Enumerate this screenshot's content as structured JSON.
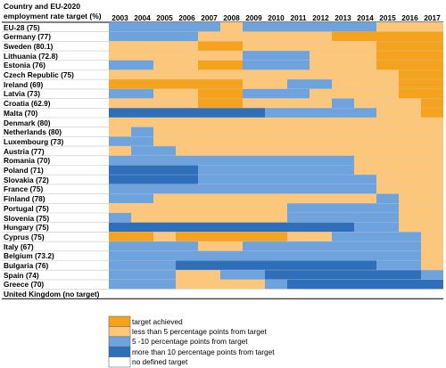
{
  "chart_data": {
    "type": "heatmap",
    "header_line1": "Country and EU-2020",
    "header_line2": "employment rate target (%)",
    "years": [
      "2003",
      "2004",
      "2005",
      "2006",
      "2007",
      "2008",
      "2009",
      "2010",
      "2011",
      "2012",
      "2013",
      "2014",
      "2015",
      "2016",
      "2017"
    ],
    "categories": {
      "A": {
        "label": "target achieved",
        "color": "#f5a31f"
      },
      "B": {
        "label": "less than 5 percentage points from target",
        "color": "#fcc77a"
      },
      "C": {
        "label": "5 -10 percentage points from target",
        "color": "#6ea3de"
      },
      "D": {
        "label": "more than 10 percentage points from target",
        "color": "#2f6fba"
      },
      "E": {
        "label": "no defined target",
        "color": "#ffffff"
      }
    },
    "legend_order": [
      "A",
      "B",
      "C",
      "D",
      "E"
    ],
    "rows": [
      {
        "country": "EU-28 (75)",
        "cells": [
          "C",
          "C",
          "C",
          "C",
          "C",
          "B",
          "C",
          "C",
          "C",
          "C",
          "C",
          "C",
          "B",
          "B",
          "B"
        ]
      },
      {
        "country": "Germany (77)",
        "cells": [
          "C",
          "C",
          "C",
          "C",
          "B",
          "B",
          "B",
          "B",
          "B",
          "B",
          "A",
          "A",
          "A",
          "A",
          "A"
        ]
      },
      {
        "country": "Sweden (80.1)",
        "cells": [
          "B",
          "B",
          "B",
          "B",
          "A",
          "A",
          "B",
          "B",
          "B",
          "B",
          "B",
          "B",
          "A",
          "A",
          "A"
        ]
      },
      {
        "country": "Lithuania (72.8)",
        "cells": [
          "B",
          "B",
          "B",
          "B",
          "B",
          "B",
          "C",
          "C",
          "C",
          "B",
          "B",
          "B",
          "A",
          "A",
          "A"
        ]
      },
      {
        "country": "Estonia (76)",
        "cells": [
          "C",
          "C",
          "B",
          "B",
          "A",
          "A",
          "C",
          "C",
          "C",
          "B",
          "B",
          "B",
          "A",
          "A",
          "A"
        ]
      },
      {
        "country": "Czech Republic (75)",
        "cells": [
          "B",
          "B",
          "B",
          "B",
          "B",
          "B",
          "B",
          "B",
          "B",
          "B",
          "B",
          "B",
          "B",
          "A",
          "A"
        ]
      },
      {
        "country": "Ireland (69)",
        "cells": [
          "A",
          "A",
          "A",
          "A",
          "A",
          "A",
          "B",
          "B",
          "C",
          "C",
          "B",
          "B",
          "B",
          "A",
          "A"
        ]
      },
      {
        "country": "Latvia (73)",
        "cells": [
          "C",
          "C",
          "B",
          "B",
          "A",
          "A",
          "C",
          "C",
          "C",
          "B",
          "B",
          "B",
          "B",
          "A",
          "A"
        ]
      },
      {
        "country": "Croatia (62.9)",
        "cells": [
          "B",
          "B",
          "B",
          "B",
          "A",
          "A",
          "B",
          "B",
          "B",
          "B",
          "C",
          "B",
          "B",
          "B",
          "A"
        ]
      },
      {
        "country": "Malta (70)",
        "cells": [
          "D",
          "D",
          "D",
          "D",
          "D",
          "D",
          "D",
          "C",
          "C",
          "C",
          "C",
          "C",
          "B",
          "B",
          "A"
        ]
      },
      {
        "country": "Denmark (80)",
        "cells": [
          "B",
          "B",
          "B",
          "B",
          "B",
          "B",
          "B",
          "B",
          "B",
          "B",
          "B",
          "B",
          "B",
          "B",
          "B"
        ]
      },
      {
        "country": "Netherlands (80)",
        "cells": [
          "B",
          "C",
          "B",
          "B",
          "B",
          "B",
          "B",
          "B",
          "B",
          "B",
          "B",
          "B",
          "B",
          "B",
          "B"
        ]
      },
      {
        "country": "Luxembourg (73)",
        "cells": [
          "C",
          "C",
          "B",
          "B",
          "B",
          "B",
          "B",
          "B",
          "B",
          "B",
          "B",
          "B",
          "B",
          "B",
          "B"
        ]
      },
      {
        "country": "Austria (77)",
        "cells": [
          "B",
          "C",
          "C",
          "B",
          "B",
          "B",
          "B",
          "B",
          "B",
          "B",
          "B",
          "B",
          "B",
          "B",
          "B"
        ]
      },
      {
        "country": "Romania (70)",
        "cells": [
          "C",
          "C",
          "C",
          "C",
          "C",
          "C",
          "C",
          "C",
          "C",
          "C",
          "C",
          "B",
          "B",
          "B",
          "B"
        ]
      },
      {
        "country": "Poland (71)",
        "cells": [
          "D",
          "D",
          "D",
          "D",
          "C",
          "C",
          "C",
          "C",
          "C",
          "C",
          "C",
          "B",
          "B",
          "B",
          "B"
        ]
      },
      {
        "country": "Slovakia (72)",
        "cells": [
          "D",
          "D",
          "D",
          "D",
          "C",
          "C",
          "C",
          "C",
          "C",
          "C",
          "C",
          "C",
          "B",
          "B",
          "B"
        ]
      },
      {
        "country": "France (75)",
        "cells": [
          "C",
          "C",
          "C",
          "C",
          "C",
          "C",
          "C",
          "C",
          "C",
          "C",
          "C",
          "C",
          "B",
          "B",
          "B"
        ]
      },
      {
        "country": "Finland (78)",
        "cells": [
          "C",
          "C",
          "B",
          "B",
          "B",
          "B",
          "B",
          "B",
          "B",
          "B",
          "B",
          "B",
          "C",
          "B",
          "B"
        ]
      },
      {
        "country": "Portugal (75)",
        "cells": [
          "B",
          "B",
          "B",
          "B",
          "B",
          "B",
          "B",
          "B",
          "C",
          "C",
          "C",
          "C",
          "C",
          "B",
          "B"
        ]
      },
      {
        "country": "Slovenia (75)",
        "cells": [
          "C",
          "B",
          "B",
          "B",
          "B",
          "B",
          "B",
          "B",
          "C",
          "C",
          "C",
          "C",
          "C",
          "B",
          "B"
        ]
      },
      {
        "country": "Hungary (75)",
        "cells": [
          "D",
          "D",
          "D",
          "D",
          "D",
          "D",
          "D",
          "D",
          "D",
          "D",
          "D",
          "C",
          "C",
          "B",
          "B"
        ]
      },
      {
        "country": "Cyprus (75)",
        "cells": [
          "A",
          "A",
          "B",
          "A",
          "A",
          "A",
          "A",
          "A",
          "B",
          "B",
          "C",
          "C",
          "C",
          "C",
          "B"
        ]
      },
      {
        "country": "Italy (67)",
        "cells": [
          "C",
          "C",
          "C",
          "C",
          "B",
          "B",
          "C",
          "C",
          "C",
          "C",
          "C",
          "C",
          "C",
          "C",
          "B"
        ]
      },
      {
        "country": "Belgium (73.2)",
        "cells": [
          "C",
          "C",
          "C",
          "C",
          "C",
          "C",
          "C",
          "C",
          "C",
          "C",
          "C",
          "C",
          "C",
          "C",
          "B"
        ]
      },
      {
        "country": "Bulgaria (76)",
        "cells": [
          "C",
          "C",
          "C",
          "D",
          "D",
          "D",
          "D",
          "D",
          "D",
          "D",
          "D",
          "D",
          "C",
          "C",
          "B"
        ]
      },
      {
        "country": "Spain (74)",
        "cells": [
          "C",
          "C",
          "C",
          "B",
          "B",
          "C",
          "C",
          "D",
          "D",
          "D",
          "D",
          "D",
          "D",
          "D",
          "C"
        ]
      },
      {
        "country": "Greece (70)",
        "cells": [
          "C",
          "C",
          "C",
          "B",
          "B",
          "B",
          "B",
          "C",
          "D",
          "D",
          "D",
          "D",
          "D",
          "D",
          "D"
        ]
      },
      {
        "country": "United Kingdom (no target)",
        "cells": [
          "E",
          "E",
          "E",
          "E",
          "E",
          "E",
          "E",
          "E",
          "E",
          "E",
          "E",
          "E",
          "E",
          "E",
          "E"
        ]
      }
    ]
  }
}
